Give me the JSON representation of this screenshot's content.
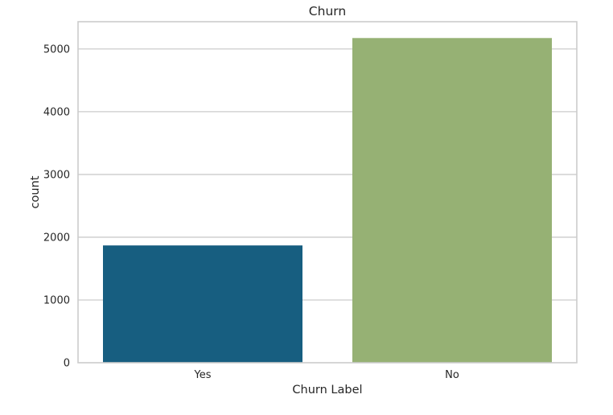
{
  "chart_data": {
    "type": "bar",
    "title": "Churn",
    "xlabel": "Churn Label",
    "ylabel": "count",
    "categories": [
      "Yes",
      "No"
    ],
    "values": [
      1869,
      5174
    ],
    "colors": [
      "#175e80",
      "#96b174"
    ],
    "ylim": [
      0,
      5434
    ],
    "yticks": [
      0,
      1000,
      2000,
      3000,
      4000,
      5000
    ],
    "grid": true,
    "grid_axis": "y"
  }
}
